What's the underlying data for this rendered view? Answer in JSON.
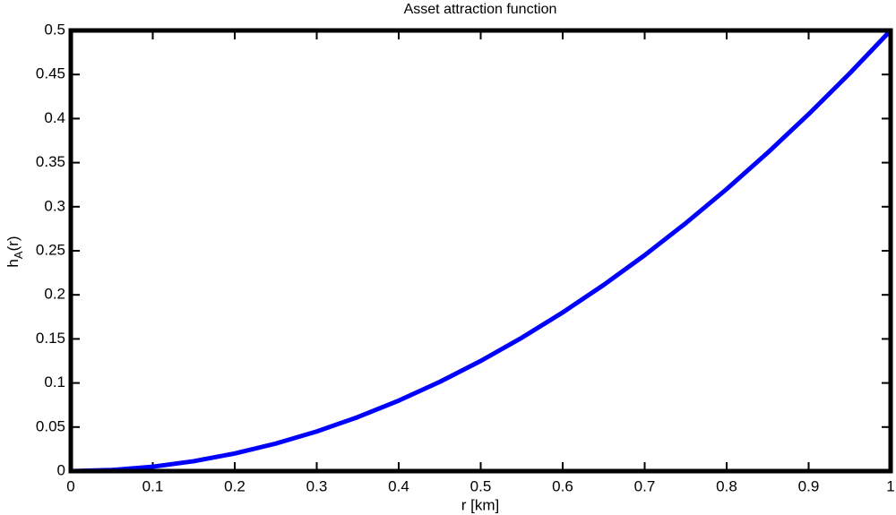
{
  "chart_data": {
    "type": "line",
    "title": "Asset attraction function",
    "xlabel": "r [km]",
    "ylabel_parts": [
      "h",
      "A",
      "(r)"
    ],
    "x": [
      0,
      0.05,
      0.1,
      0.15,
      0.2,
      0.25,
      0.3,
      0.35,
      0.4,
      0.45,
      0.5,
      0.55,
      0.6,
      0.65,
      0.7,
      0.75,
      0.8,
      0.85,
      0.9,
      0.95,
      1
    ],
    "series": [
      {
        "color": "#0000ff",
        "values": [
          0,
          0.00125,
          0.005,
          0.01125,
          0.02,
          0.03125,
          0.045,
          0.06125,
          0.08,
          0.10125,
          0.125,
          0.15125,
          0.18,
          0.21125,
          0.245,
          0.28125,
          0.32,
          0.36125,
          0.405,
          0.45125,
          0.5
        ]
      }
    ],
    "xlim": [
      0,
      1
    ],
    "xticks": [
      0,
      0.1,
      0.2,
      0.3,
      0.4,
      0.5,
      0.6,
      0.7,
      0.8,
      0.9,
      1
    ],
    "ylim": [
      0,
      0.5
    ],
    "yticks": [
      0,
      0.05,
      0.1,
      0.15,
      0.2,
      0.25,
      0.3,
      0.35,
      0.4,
      0.45,
      0.5
    ],
    "grid": false
  }
}
